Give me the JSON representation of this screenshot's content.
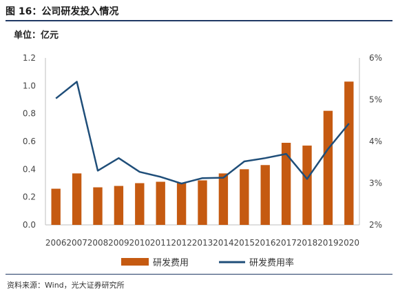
{
  "header": {
    "title": "图 16：公司研发投入情况"
  },
  "unit_label": "单位：亿元",
  "source": "资料来源：Wind，光大证券研究所",
  "chart_data": {
    "type": "bar",
    "categories": [
      "2006",
      "2007",
      "2008",
      "2009",
      "2010",
      "2011",
      "2012",
      "2013",
      "2014",
      "2015",
      "2016",
      "2017",
      "2018",
      "2019",
      "2020"
    ],
    "series": [
      {
        "name": "研发费用",
        "type": "bar",
        "axis": "left",
        "color": "#c55a11",
        "values": [
          0.26,
          0.37,
          0.27,
          0.28,
          0.3,
          0.31,
          0.3,
          0.32,
          0.37,
          0.4,
          0.43,
          0.59,
          0.57,
          0.82,
          1.03
        ]
      },
      {
        "name": "研发费用率",
        "type": "line",
        "axis": "right",
        "color": "#1f4e79",
        "values": [
          5.03,
          5.43,
          3.3,
          3.6,
          3.27,
          3.15,
          2.99,
          3.12,
          3.13,
          3.52,
          3.6,
          3.7,
          3.1,
          3.82,
          4.43
        ]
      }
    ],
    "y_left": {
      "min": 0,
      "max": 1.2,
      "ticks": [
        0.0,
        0.2,
        0.4,
        0.6,
        0.8,
        1.0,
        1.2
      ],
      "tick_labels": [
        "0.0",
        "0.2",
        "0.4",
        "0.6",
        "0.8",
        "1.0",
        "1.2"
      ]
    },
    "y_right": {
      "min": 2,
      "max": 6,
      "ticks": [
        2,
        3,
        4,
        5,
        6
      ],
      "tick_labels": [
        "2%",
        "3%",
        "4%",
        "5%",
        "6%"
      ]
    },
    "grid": false,
    "legend_position": "bottom"
  }
}
